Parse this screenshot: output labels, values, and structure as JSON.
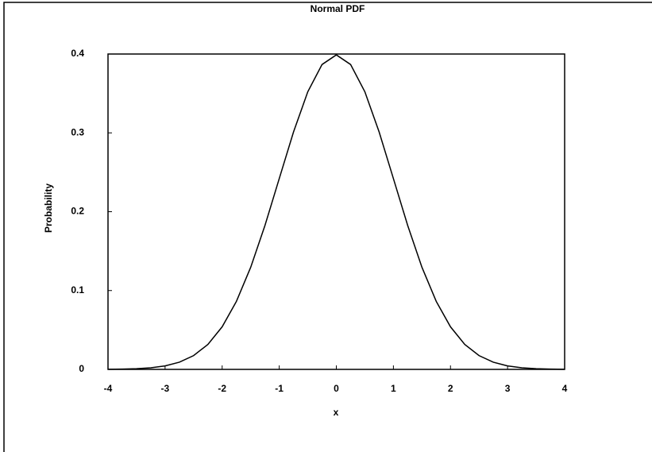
{
  "chart_data": {
    "type": "line",
    "title": "Normal PDF",
    "x_label": "x",
    "y_label": "Probability",
    "x": [
      -4,
      -3.75,
      -3.5,
      -3.25,
      -3,
      -2.75,
      -2.5,
      -2.25,
      -2,
      -1.75,
      -1.5,
      -1.25,
      -1,
      -0.75,
      -0.5,
      -0.25,
      0,
      0.25,
      0.5,
      0.75,
      1,
      1.25,
      1.5,
      1.75,
      2,
      2.25,
      2.5,
      2.75,
      3,
      3.25,
      3.5,
      3.75,
      4
    ],
    "series": [
      {
        "color": "#000000",
        "values": [
          0.0001,
          0.0004,
          0.0009,
          0.002,
          0.0044,
          0.0091,
          0.0175,
          0.0317,
          0.054,
          0.0863,
          0.1295,
          0.1826,
          0.242,
          0.3011,
          0.3521,
          0.3867,
          0.3989,
          0.3867,
          0.3521,
          0.3011,
          0.242,
          0.1826,
          0.1295,
          0.0863,
          0.054,
          0.0317,
          0.0175,
          0.0091,
          0.0044,
          0.002,
          0.0009,
          0.0004,
          0.0001
        ]
      }
    ],
    "xlim": [
      -4,
      4
    ],
    "xticks": [
      -4,
      -3,
      -2,
      -1,
      0,
      1,
      2,
      3,
      4
    ],
    "ylim": [
      0,
      0.4
    ],
    "yticks": [
      0,
      0.1,
      0.2,
      0.3,
      0.4
    ],
    "grid": false
  }
}
